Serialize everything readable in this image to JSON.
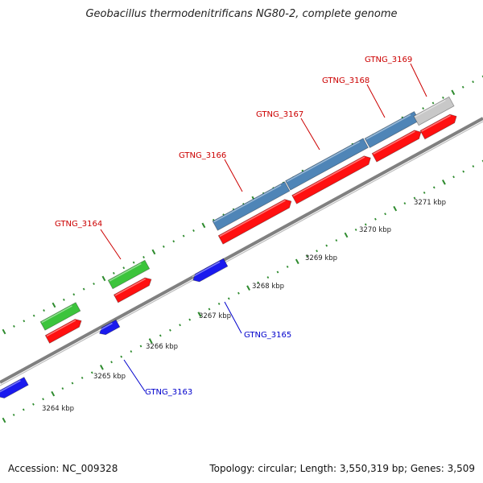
{
  "title": "Geobacillus thermodenitrificans NG80-2, complete genome",
  "footer": {
    "accession": "Accession: NC_009328",
    "summary": "Topology: circular; Length: 3,550,319 bp; Genes: 3,509"
  },
  "colors": {
    "backbone": "#808080",
    "tick_green": "#2e8b2e",
    "green_feature": "#3cc43c",
    "red_feature": "#ff1010",
    "blue_feature": "#1a1aee",
    "steel_feature": "#4f85b7",
    "grey_feature": "#c8c8c8",
    "label_red": "#cc0000",
    "label_blue": "#0000cc"
  },
  "scale": {
    "start_kbp": 3264,
    "end_kbp": 3271,
    "unit": "kbp"
  },
  "scale_labels": [
    "3264 kbp",
    "3265 kbp",
    "3266 kbp",
    "3267 kbp",
    "3268 kbp",
    "3269 kbp",
    "3270 kbp",
    "3271 kbp"
  ],
  "genes": [
    {
      "label": "GTNG_3163",
      "strand": "-",
      "label_color": "blue"
    },
    {
      "label": "GTNG_3164",
      "strand": "+",
      "label_color": "red"
    },
    {
      "label": "GTNG_3165",
      "strand": "-",
      "label_color": "blue"
    },
    {
      "label": "GTNG_3166",
      "strand": "+",
      "label_color": "red"
    },
    {
      "label": "GTNG_3167",
      "strand": "+",
      "label_color": "red"
    },
    {
      "label": "GTNG_3168",
      "strand": "+",
      "label_color": "red"
    },
    {
      "label": "GTNG_3169",
      "strand": "+",
      "label_color": "red"
    }
  ]
}
